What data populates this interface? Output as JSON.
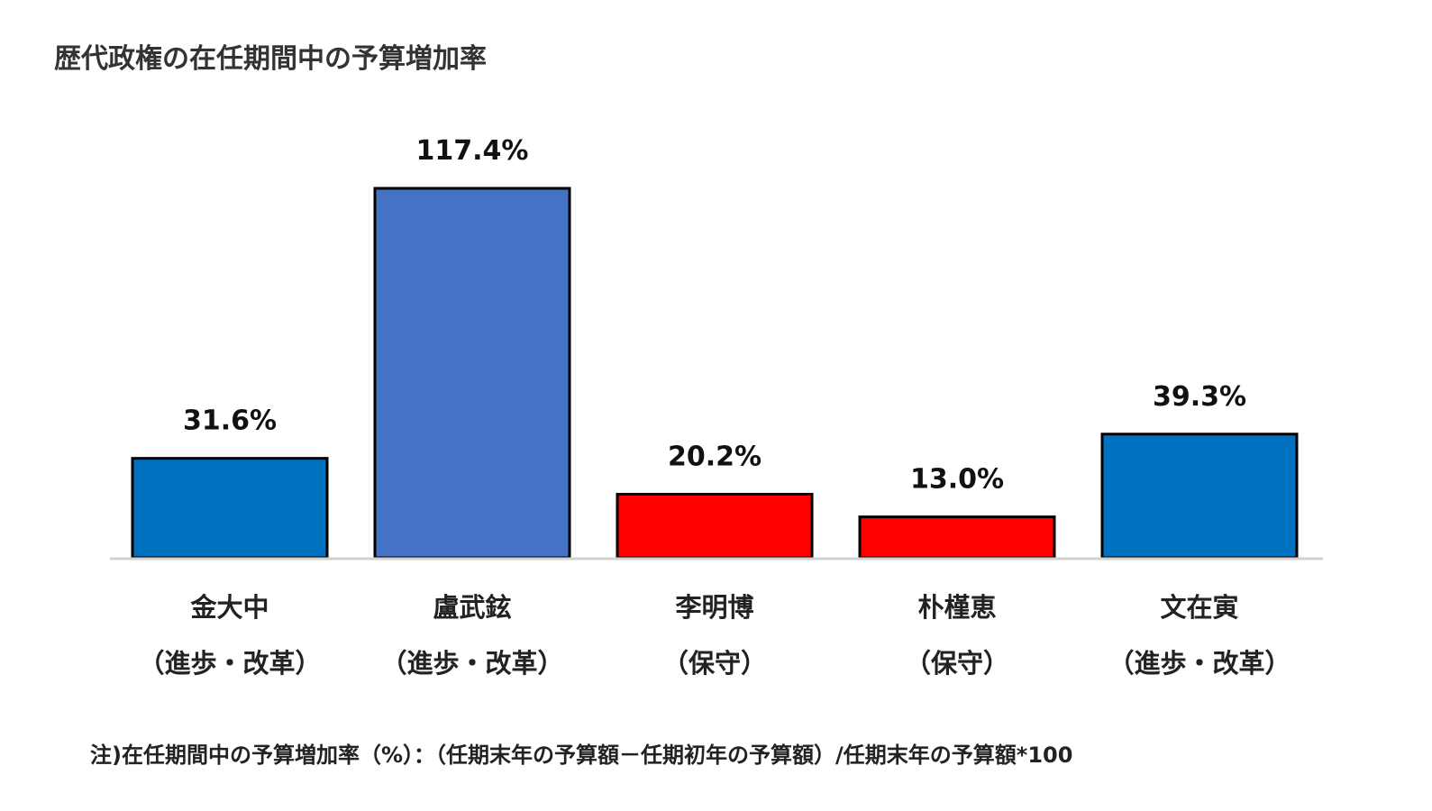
{
  "chart_data": {
    "type": "bar",
    "title": "歴代政権の在任期間中の予算増加率",
    "categories": [
      "金大中",
      "盧武鉉",
      "李明博",
      "朴槿恵",
      "文在寅"
    ],
    "groups": [
      "（進歩・改革）",
      "（進歩・改革）",
      "（保守）",
      "（保守）",
      "（進歩・改革）"
    ],
    "values": [
      31.6,
      117.4,
      20.2,
      13.0,
      39.3
    ],
    "value_labels": [
      "31.6%",
      "117.4%",
      "20.2%",
      "13.0%",
      "39.3%"
    ],
    "bar_colors": [
      "#0070C0",
      "#4472C4",
      "#FF0000",
      "#FF0000",
      "#0070C0"
    ],
    "ylim": [
      0,
      117.4
    ],
    "grid": false,
    "legend": "none",
    "footnote": "注)在任期間中の予算増加率（%）：（任期末年の予算額－任期初年の予算額）/任期末年の予算額*100"
  }
}
